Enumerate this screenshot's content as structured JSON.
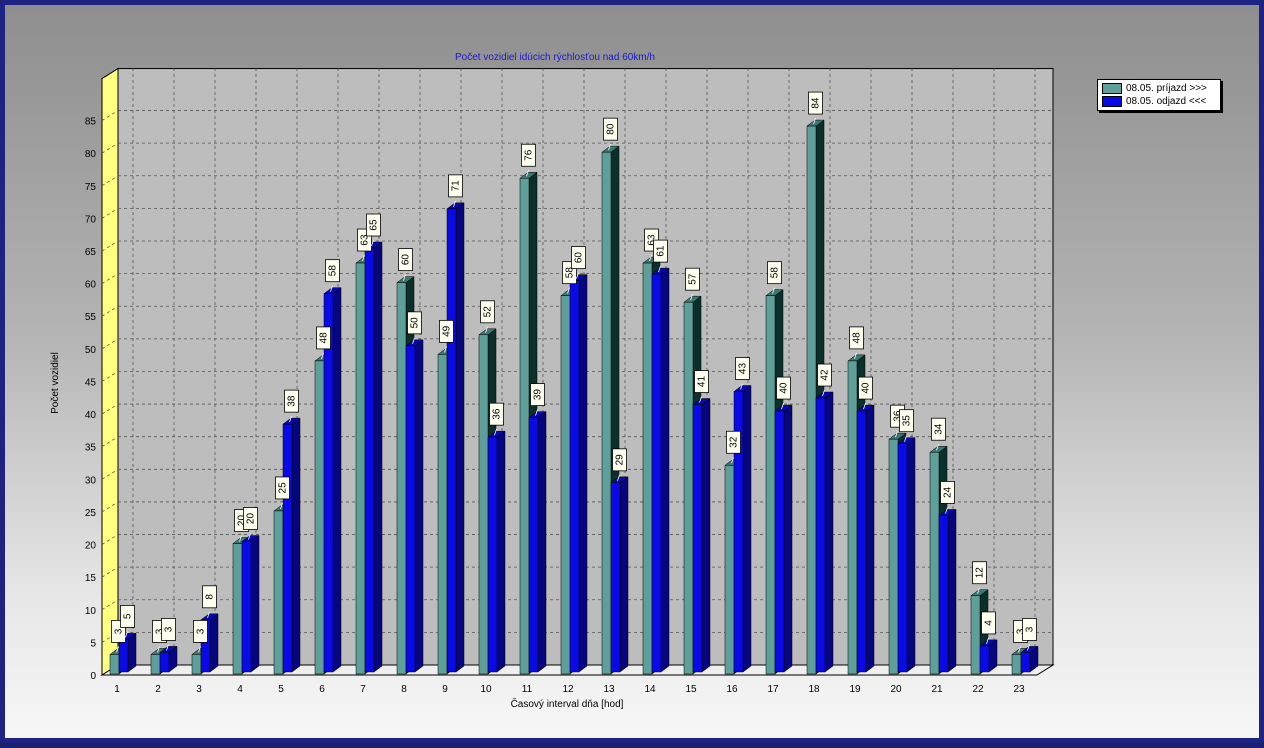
{
  "chart_data": {
    "type": "bar",
    "title": "Počet vozidiel idúcich rýchlosťou nad 60km/h",
    "xlabel": "Časový interval dňa [hod]",
    "ylabel": "Počet vozidiel",
    "ylim": [
      0,
      85
    ],
    "yticks": [
      "0",
      "5",
      "10",
      "15",
      "20",
      "25",
      "30",
      "35",
      "40",
      "45",
      "50",
      "55",
      "60",
      "65",
      "70",
      "75",
      "80",
      "85"
    ],
    "categories": [
      "1",
      "2",
      "3",
      "4",
      "5",
      "6",
      "7",
      "8",
      "9",
      "10",
      "11",
      "12",
      "13",
      "14",
      "15",
      "16",
      "17",
      "18",
      "19",
      "20",
      "21",
      "22",
      "23"
    ],
    "series": [
      {
        "name": "08.05.  príjazd >>>",
        "color": "#5e9f9a",
        "values": [
          3,
          3,
          3,
          20,
          25,
          48,
          63,
          60,
          49,
          52,
          76,
          58,
          80,
          63,
          57,
          32,
          58,
          84,
          48,
          36,
          34,
          12,
          3
        ]
      },
      {
        "name": "08.05.  odjazd <<<",
        "color": "#0a0ae6",
        "values": [
          5,
          3,
          8,
          20,
          38,
          58,
          65,
          50,
          71,
          36,
          39,
          60,
          29,
          61,
          41,
          43,
          40,
          42,
          40,
          35,
          24,
          4,
          3
        ]
      }
    ],
    "grid": true,
    "legend_position": "top-right",
    "data_labels": true
  }
}
